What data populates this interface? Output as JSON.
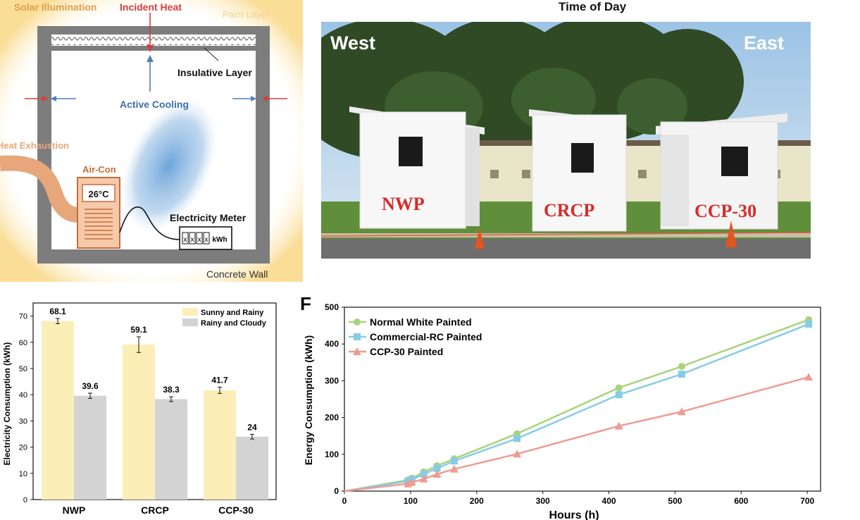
{
  "top_axis": {
    "title": "Time of Day"
  },
  "schematic": {
    "solar_illumination": "Solar Illumination",
    "incident_heat": "Incident Heat",
    "paint_layer": "Paint Layer",
    "insulative_layer": "Insulative Layer",
    "active_cooling": "Active Cooling",
    "heat_exhaustion": "Heat Exhaustion",
    "air_con": "Air-Con",
    "air_con_temp": "26°C",
    "electricity_meter": "Electricity Meter",
    "meter_digits": [
      "x",
      "x",
      "x",
      "x"
    ],
    "meter_unit": "kWh",
    "concrete_wall": "Concrete Wall"
  },
  "photo": {
    "west": "West",
    "east": "East",
    "labels": [
      "NWP",
      "CRCP",
      "CCP-30"
    ]
  },
  "chart_data": [
    {
      "type": "bar",
      "categories": [
        "NWP",
        "CRCP",
        "CCP-30"
      ],
      "series": [
        {
          "name": "Sunny and Rainy",
          "values": [
            68.1,
            59.1,
            41.7
          ],
          "errors": [
            1.0,
            3.0,
            1.2
          ],
          "color": "#fbeeb7"
        },
        {
          "name": "Rainy and Cloudy",
          "values": [
            39.6,
            38.3,
            24
          ],
          "errors": [
            1.0,
            0.9,
            0.9
          ],
          "color": "#d3d3d3"
        }
      ],
      "value_labels": [
        [
          "68.1",
          "59.1",
          "41.7"
        ],
        [
          "39.6",
          "38.3",
          "24"
        ]
      ],
      "ylabel": "Electricity Consumption (kWh)",
      "yticks": [
        0,
        10,
        20,
        30,
        40,
        50,
        60,
        70
      ],
      "ylim": [
        0,
        75
      ],
      "legend": "top-right"
    },
    {
      "type": "line",
      "panel_label": "F",
      "xlabel": "Hours (h)",
      "ylabel": "Energy Consumption (kWh)",
      "xticks": [
        0,
        100,
        200,
        300,
        400,
        500,
        600,
        700
      ],
      "yticks": [
        0,
        100,
        200,
        300,
        400,
        500
      ],
      "xlim": [
        0,
        720
      ],
      "ylim": [
        0,
        500
      ],
      "legend": "top-left",
      "series": [
        {
          "name": "Normal White Painted",
          "marker": "circle",
          "color": "#a9d37a",
          "x": [
            0,
            96,
            102,
            120,
            140,
            166,
            261,
            415,
            510,
            702
          ],
          "y": [
            0,
            30,
            35,
            52,
            69,
            88,
            156,
            281,
            339,
            466
          ]
        },
        {
          "name": "Commercial-RC Painted",
          "marker": "square",
          "color": "#86cce4",
          "x": [
            0,
            96,
            102,
            120,
            140,
            166,
            261,
            415,
            510,
            702
          ],
          "y": [
            0,
            27,
            31,
            46,
            62,
            82,
            143,
            262,
            318,
            454
          ]
        },
        {
          "name": "CCP-30 Painted",
          "marker": "triangle",
          "color": "#ef9b92",
          "x": [
            0,
            96,
            102,
            120,
            140,
            166,
            261,
            415,
            510,
            702
          ],
          "y": [
            0,
            20,
            24,
            33,
            46,
            60,
            101,
            177,
            216,
            310
          ]
        }
      ]
    }
  ]
}
